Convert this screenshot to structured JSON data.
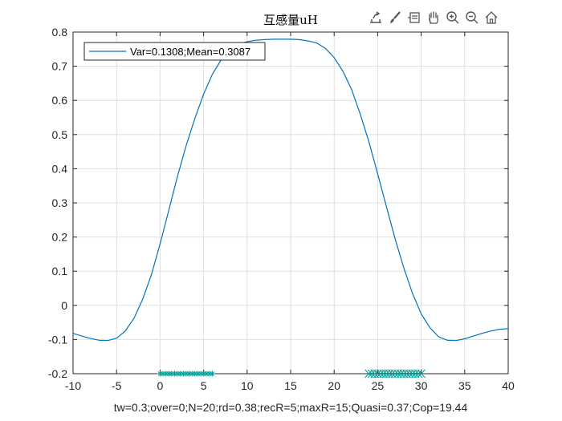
{
  "toolbar": {
    "icons": [
      "export-icon",
      "brush-icon",
      "data-tips-icon",
      "pan-icon",
      "zoom-in-icon",
      "zoom-out-icon",
      "home-icon"
    ]
  },
  "colors": {
    "line": "#0072BD",
    "markers": "#00A19A",
    "axis": "#262626",
    "grid": "#DFDFDF"
  },
  "chart_data": {
    "type": "line",
    "title": "互感量uH",
    "xlabel": "tw=0.3;over=0;N=20;rd=0.38;recR=5;maxR=15;Quasi=0.37;Cop=19.44",
    "ylabel": "",
    "xlim": [
      -10,
      40
    ],
    "ylim": [
      -0.2,
      0.8
    ],
    "xticks": [
      "-10",
      "-5",
      "0",
      "5",
      "10",
      "15",
      "20",
      "25",
      "30",
      "35",
      "40"
    ],
    "yticks": [
      "-0.2",
      "-0.1",
      "0",
      "0.1",
      "0.2",
      "0.3",
      "0.4",
      "0.5",
      "0.6",
      "0.7",
      "0.8"
    ],
    "grid": true,
    "legend_location": "top-left",
    "series": [
      {
        "name": "Var=0.1308;Mean=0.3087",
        "x": [
          -10,
          -9,
          -8,
          -7,
          -6,
          -5,
          -4,
          -3,
          -2,
          -1,
          0,
          1,
          2,
          3,
          4,
          5,
          6,
          7,
          8,
          9,
          10,
          11,
          12,
          13,
          14,
          15,
          16,
          17,
          18,
          19,
          20,
          21,
          22,
          23,
          24,
          25,
          26,
          27,
          28,
          29,
          30,
          31,
          32,
          33,
          34,
          35,
          36,
          37,
          38,
          39,
          40
        ],
        "y": [
          -0.082,
          -0.09,
          -0.097,
          -0.102,
          -0.103,
          -0.096,
          -0.075,
          -0.038,
          0.018,
          0.09,
          0.18,
          0.278,
          0.378,
          0.468,
          0.548,
          0.618,
          0.676,
          0.718,
          0.748,
          0.765,
          0.772,
          0.776,
          0.778,
          0.779,
          0.779,
          0.779,
          0.778,
          0.774,
          0.768,
          0.752,
          0.725,
          0.686,
          0.632,
          0.56,
          0.478,
          0.385,
          0.29,
          0.195,
          0.11,
          0.035,
          -0.025,
          -0.065,
          -0.092,
          -0.102,
          -0.103,
          -0.098,
          -0.09,
          -0.082,
          -0.075,
          -0.07,
          -0.068
        ]
      }
    ],
    "markers": [
      {
        "symbol": "*",
        "y": -0.2,
        "x": [
          0,
          0.33,
          0.67,
          1.0,
          1.33,
          1.67,
          2.0,
          2.33,
          2.67,
          3.0,
          3.33,
          3.67,
          4.0,
          4.33,
          4.67,
          5.0,
          5.33,
          5.67,
          6.0
        ]
      },
      {
        "symbol": "x",
        "y": -0.2,
        "x": [
          24.0,
          24.33,
          24.67,
          25.0,
          25.33,
          25.67,
          26.0,
          26.33,
          26.67,
          27.0,
          27.33,
          27.67,
          28.0,
          28.33,
          28.67,
          29.0,
          29.33,
          29.67,
          30.0
        ]
      }
    ]
  }
}
